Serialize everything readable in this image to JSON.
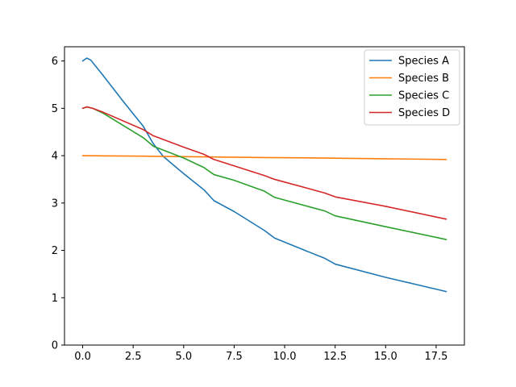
{
  "chart_data": {
    "type": "line",
    "title": "",
    "xlabel": "",
    "ylabel": "",
    "xlim": [
      -0.9,
      18.9
    ],
    "ylim": [
      0,
      6.3
    ],
    "xticks": [
      0.0,
      2.5,
      5.0,
      7.5,
      10.0,
      12.5,
      15.0,
      17.5
    ],
    "xtick_labels": [
      "0.0",
      "2.5",
      "5.0",
      "7.5",
      "10.0",
      "12.5",
      "15.0",
      "17.5"
    ],
    "yticks": [
      0,
      1,
      2,
      3,
      4,
      5,
      6
    ],
    "ytick_labels": [
      "0",
      "1",
      "2",
      "3",
      "4",
      "5",
      "6"
    ],
    "grid": false,
    "legend_position": "top-right",
    "series": [
      {
        "name": "Species A",
        "color": "#1f77b4",
        "x": [
          0,
          0.2,
          0.4,
          1,
          2,
          3,
          3.5,
          4,
          5,
          6,
          6.5,
          7.5,
          9,
          9.5,
          11,
          12,
          12.5,
          15,
          18
        ],
        "y": [
          6.0,
          6.06,
          6.02,
          5.7,
          5.15,
          4.62,
          4.25,
          3.98,
          3.62,
          3.28,
          3.05,
          2.82,
          2.42,
          2.26,
          2.0,
          1.83,
          1.71,
          1.43,
          1.13
        ]
      },
      {
        "name": "Species B",
        "color": "#ff7f0e",
        "x": [
          0,
          3,
          6,
          9,
          12,
          15,
          18
        ],
        "y": [
          4.0,
          3.99,
          3.975,
          3.96,
          3.95,
          3.935,
          3.92
        ]
      },
      {
        "name": "Species C",
        "color": "#2ca02c",
        "x": [
          0,
          0.2,
          0.5,
          1,
          3,
          3.5,
          5,
          6,
          6.5,
          7.5,
          9,
          9.5,
          12,
          12.5,
          15,
          18
        ],
        "y": [
          5.0,
          5.03,
          5.0,
          4.9,
          4.38,
          4.2,
          3.95,
          3.75,
          3.6,
          3.48,
          3.25,
          3.12,
          2.83,
          2.73,
          2.5,
          2.23
        ]
      },
      {
        "name": "Species D",
        "color": "#d62728",
        "x": [
          0,
          0.2,
          0.5,
          1,
          3,
          3.5,
          5,
          6,
          6.5,
          9,
          9.5,
          12,
          12.5,
          15,
          18
        ],
        "y": [
          5.0,
          5.03,
          5.0,
          4.92,
          4.55,
          4.42,
          4.18,
          4.03,
          3.92,
          3.58,
          3.5,
          3.21,
          3.13,
          2.93,
          2.66
        ]
      }
    ]
  }
}
